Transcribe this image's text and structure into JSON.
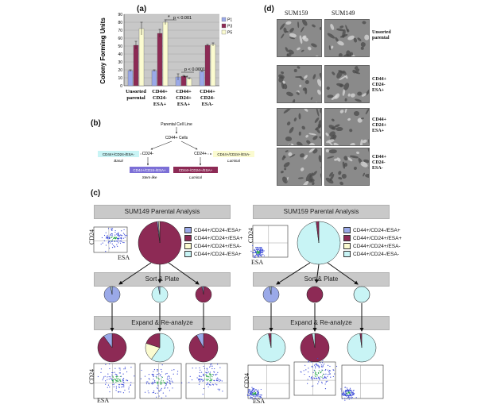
{
  "panels": {
    "a": "(a)",
    "b": "(b)",
    "c": "(c)",
    "d": "(d)"
  },
  "chart_data": {
    "type": "bar",
    "ylabel": "Colony Forming Units",
    "ylim": [
      0,
      90
    ],
    "yticks": [
      0,
      10,
      20,
      30,
      40,
      50,
      60,
      70,
      80,
      90
    ],
    "categories": [
      "Unsorted parental",
      "CD44+ CD24- ESA+",
      "CD44+ CD24+ ESA+",
      "CD44+ CD24- ESA-"
    ],
    "series": [
      {
        "name": "P1",
        "values": [
          19,
          19,
          11,
          18
        ],
        "errors": [
          1,
          1,
          4,
          1
        ],
        "color": "#9aa9e8"
      },
      {
        "name": "P3",
        "values": [
          51,
          66,
          12,
          51
        ],
        "errors": [
          5,
          5,
          1,
          1
        ],
        "color": "#8d2a55"
      },
      {
        "name": "P5",
        "values": [
          72,
          80,
          9,
          52
        ],
        "errors": [
          8,
          3,
          1,
          2
        ],
        "color": "#fbfbd0"
      }
    ],
    "annotations": [
      "*",
      "p < 0.001",
      "p < 0.0001",
      "**"
    ],
    "legend_position": "top-right"
  },
  "flow_b": {
    "parent": "Parental Cell Line",
    "cd44": "CD44+ Cells",
    "cd24neg": "CD24-",
    "cd24pos": "CD24+",
    "basal_box": "CD44+/CD24-/ESA-",
    "basal": "Basal",
    "stem_box": "CD44+/CD24-/ESA+",
    "stem": "Stem-like",
    "luminal_box": "CD44+/CD24+/ESA+",
    "luminal": "Luminal",
    "luminal2_box": "CD44+/CD24+/ESA-",
    "luminal2": "Luminal"
  },
  "panel_c": {
    "left_title": "SUM149 Parental Analysis",
    "right_title": "SUM159 Parental Analysis",
    "sort_plate": "Sort & Plate",
    "expand": "Expand & Re-analyze",
    "cd24": "CD24",
    "esa": "ESA",
    "legend": [
      {
        "label": "CD44+/CD24-/ESA+",
        "color": "#9aa9e8"
      },
      {
        "label": "CD44+/CD24+/ESA+",
        "color": "#8d2a55"
      },
      {
        "label": "CD44+/CD24+/ESA-",
        "color": "#fbfbd0"
      },
      {
        "label": "CD44+/CD24-/ESA-",
        "color": "#c8f4f5"
      }
    ]
  },
  "panel_d": {
    "col1": "SUM159",
    "col2": "SUM149",
    "row1": "Unsorted parental",
    "row2": "CD44+ CD24- ESA+",
    "row3": "CD44+ CD24+ ESA+",
    "row4": "CD44+ CD24- ESA-"
  }
}
